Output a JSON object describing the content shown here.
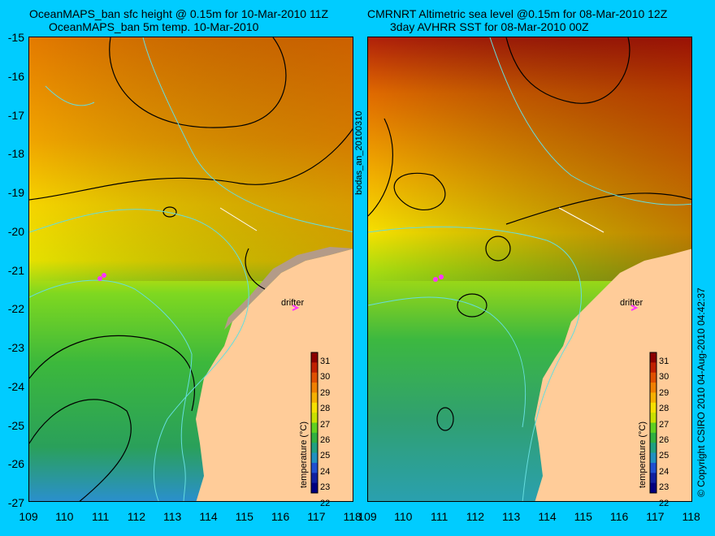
{
  "left_panel": {
    "title_line1": "OceanMAPS_ban sfc height @ 0.15m for 10-Mar-2010 11Z",
    "title_line2": "OceanMAPS_ban 5m temp. 10-Mar-2010",
    "drifter_label": "drifter",
    "colorbar_label": "temperature (°C)"
  },
  "right_panel": {
    "title_line1": "CMRNRT Altimetric sea level  @0.15m  for 08-Mar-2010 12Z",
    "title_line2": "3day AVHRR SST for 08-Mar-2010 00Z",
    "drifter_label": "drifter",
    "colorbar_label": "temperature (°C)"
  },
  "center_label": "bodas_an_20100310",
  "copyright": "© Copyright CSIRO 2010  04-Aug-2010 04:42:37",
  "y_ticks": [
    "-15",
    "-16",
    "-17",
    "-18",
    "-19",
    "-20",
    "-21",
    "-22",
    "-23",
    "-24",
    "-25",
    "-26",
    "-27"
  ],
  "x_ticks_left": [
    "109",
    "110",
    "111",
    "112",
    "113",
    "114",
    "115",
    "116",
    "117",
    "118"
  ],
  "x_ticks_right": [
    "109",
    "110",
    "111",
    "112",
    "113",
    "114",
    "115",
    "116",
    "117",
    "118"
  ],
  "colorbar_ticks": [
    "31",
    "30",
    "29",
    "28",
    "27",
    "26",
    "25",
    "24",
    "23",
    "22"
  ],
  "colors": {
    "background": "#00ccff",
    "land": "#ffcc99",
    "contour": "#000000",
    "bathymetry": "#66dddd",
    "drifter": "#ff33ff"
  }
}
